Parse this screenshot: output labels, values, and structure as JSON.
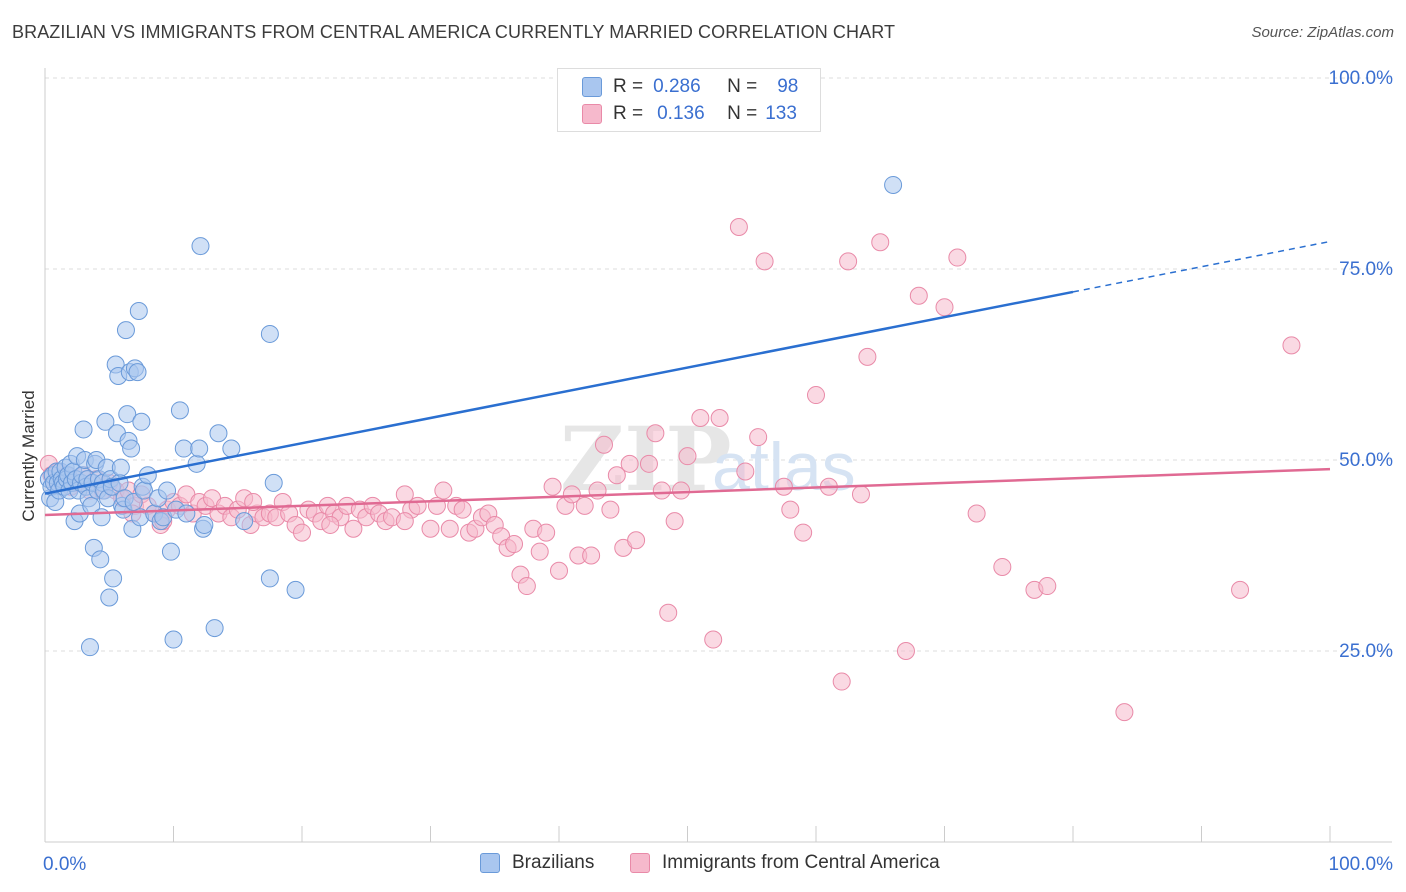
{
  "title": "BRAZILIAN VS IMMIGRANTS FROM CENTRAL AMERICA CURRENTLY MARRIED CORRELATION CHART",
  "source": "Source: ZipAtlas.com",
  "watermark": {
    "zip": "ZIP",
    "atlas": "atlas"
  },
  "legend_top": {
    "rows": [
      {
        "r_label": "R =",
        "r_value": "0.286",
        "n_label": "N =",
        "n_value": "98"
      },
      {
        "r_label": "R =",
        "r_value": "0.136",
        "n_label": "N =",
        "n_value": "133"
      }
    ]
  },
  "colors": {
    "blue_fill": "#a9c6ef",
    "blue_stroke": "#6a9ad9",
    "blue_line": "#2a6fd0",
    "pink_fill": "#f6b9cc",
    "pink_stroke": "#e98aa8",
    "pink_line": "#e06a93",
    "axis_text": "#3a6fd0",
    "grid": "#dddddd"
  },
  "chart_data": {
    "type": "scatter",
    "title": "BRAZILIAN VS IMMIGRANTS FROM CENTRAL AMERICA CURRENTLY MARRIED CORRELATION CHART",
    "xlabel": "",
    "ylabel": "Currently Married",
    "xlim": [
      0,
      100
    ],
    "ylim": [
      0,
      100
    ],
    "x_tick_labels": [
      "0.0%",
      "100.0%"
    ],
    "y_tick_labels": [
      "25.0%",
      "50.0%",
      "75.0%",
      "100.0%"
    ],
    "y_ticks": [
      25,
      50,
      75,
      100
    ],
    "grid": true,
    "legend": "bottom",
    "series": [
      {
        "name": "Brazilians",
        "color": "#a9c6ef",
        "trend": {
          "x": [
            0,
            80
          ],
          "y": [
            45.6,
            72.0
          ],
          "dashed_to": [
            100,
            78.6
          ]
        },
        "points": [
          [
            0.3,
            47.5
          ],
          [
            0.4,
            45
          ],
          [
            0.5,
            46.5
          ],
          [
            0.6,
            48
          ],
          [
            0.7,
            47
          ],
          [
            0.8,
            44.5
          ],
          [
            0.9,
            48.5
          ],
          [
            1.0,
            47
          ],
          [
            1.1,
            46
          ],
          [
            1.2,
            48.5
          ],
          [
            1.3,
            47.5
          ],
          [
            1.4,
            47
          ],
          [
            1.5,
            46.5
          ],
          [
            1.6,
            49
          ],
          [
            1.7,
            47.5
          ],
          [
            1.8,
            48
          ],
          [
            1.9,
            46
          ],
          [
            2.0,
            49.5
          ],
          [
            2.1,
            47
          ],
          [
            2.2,
            48.5
          ],
          [
            2.3,
            42
          ],
          [
            2.4,
            47.5
          ],
          [
            2.5,
            50.5
          ],
          [
            2.6,
            46
          ],
          [
            2.7,
            43
          ],
          [
            2.8,
            47
          ],
          [
            2.9,
            48
          ],
          [
            3.0,
            54
          ],
          [
            3.1,
            50
          ],
          [
            3.2,
            46.5
          ],
          [
            3.3,
            47.5
          ],
          [
            3.4,
            45
          ],
          [
            3.5,
            25.5
          ],
          [
            3.6,
            44
          ],
          [
            3.7,
            47
          ],
          [
            3.8,
            38.5
          ],
          [
            3.9,
            49.5
          ],
          [
            4.0,
            50
          ],
          [
            4.1,
            46
          ],
          [
            4.2,
            47.5
          ],
          [
            4.3,
            37
          ],
          [
            4.4,
            42.5
          ],
          [
            4.5,
            47
          ],
          [
            4.6,
            46
          ],
          [
            4.7,
            55
          ],
          [
            4.8,
            49
          ],
          [
            4.9,
            45
          ],
          [
            5.0,
            32
          ],
          [
            5.1,
            47.5
          ],
          [
            5.2,
            46.5
          ],
          [
            5.3,
            34.5
          ],
          [
            5.5,
            62.5
          ],
          [
            5.6,
            53.5
          ],
          [
            5.7,
            61
          ],
          [
            5.8,
            47
          ],
          [
            5.9,
            49
          ],
          [
            6.0,
            44
          ],
          [
            6.1,
            43.5
          ],
          [
            6.2,
            45
          ],
          [
            6.3,
            67
          ],
          [
            6.4,
            56
          ],
          [
            6.5,
            52.5
          ],
          [
            6.6,
            61.5
          ],
          [
            6.7,
            51.5
          ],
          [
            6.8,
            41
          ],
          [
            6.9,
            44.5
          ],
          [
            7.0,
            62
          ],
          [
            7.2,
            61.5
          ],
          [
            7.3,
            69.5
          ],
          [
            7.4,
            42.5
          ],
          [
            7.5,
            55
          ],
          [
            7.6,
            46.5
          ],
          [
            7.7,
            46
          ],
          [
            8.0,
            48
          ],
          [
            8.5,
            43
          ],
          [
            8.8,
            45
          ],
          [
            9.0,
            42
          ],
          [
            9.2,
            42.5
          ],
          [
            9.5,
            46
          ],
          [
            9.8,
            38
          ],
          [
            10.0,
            26.5
          ],
          [
            10.2,
            43.5
          ],
          [
            10.5,
            56.5
          ],
          [
            10.8,
            51.5
          ],
          [
            11.0,
            43
          ],
          [
            11.8,
            49.5
          ],
          [
            12.0,
            51.5
          ],
          [
            12.1,
            78
          ],
          [
            12.3,
            41
          ],
          [
            12.4,
            41.5
          ],
          [
            13.2,
            28
          ],
          [
            13.5,
            53.5
          ],
          [
            14.5,
            51.5
          ],
          [
            15.5,
            42
          ],
          [
            17.5,
            66.5
          ],
          [
            17.8,
            47
          ],
          [
            17.5,
            34.5
          ],
          [
            19.5,
            33
          ],
          [
            66.0,
            86
          ]
        ]
      },
      {
        "name": "Immigrants from Central America",
        "color": "#f6b9cc",
        "trend": {
          "x": [
            0,
            100
          ],
          "y": [
            42.8,
            48.8
          ]
        },
        "points": [
          [
            0.3,
            49.5
          ],
          [
            0.5,
            48
          ],
          [
            0.7,
            47
          ],
          [
            1.0,
            48.5
          ],
          [
            1.3,
            47
          ],
          [
            1.7,
            48
          ],
          [
            2.0,
            46.5
          ],
          [
            2.5,
            47
          ],
          [
            3.0,
            48
          ],
          [
            3.5,
            46
          ],
          [
            4.0,
            47.5
          ],
          [
            4.5,
            46
          ],
          [
            5.0,
            47
          ],
          [
            5.5,
            46
          ],
          [
            6.0,
            45
          ],
          [
            6.5,
            46
          ],
          [
            7.0,
            44
          ],
          [
            7.5,
            45.5
          ],
          [
            8.0,
            44
          ],
          [
            8.5,
            43
          ],
          [
            9.0,
            41.5
          ],
          [
            9.5,
            43.5
          ],
          [
            10.0,
            44.5
          ],
          [
            10.5,
            44
          ],
          [
            11.0,
            45.5
          ],
          [
            11.5,
            43
          ],
          [
            12.0,
            44.5
          ],
          [
            12.5,
            44
          ],
          [
            13.0,
            45
          ],
          [
            13.5,
            43
          ],
          [
            14.0,
            44
          ],
          [
            14.5,
            42.5
          ],
          [
            15.0,
            43.5
          ],
          [
            15.5,
            45
          ],
          [
            16.0,
            41.5
          ],
          [
            16.5,
            43
          ],
          [
            17.0,
            42.5
          ],
          [
            17.5,
            43
          ],
          [
            18.0,
            42.5
          ],
          [
            18.5,
            44.5
          ],
          [
            19.0,
            43
          ],
          [
            19.5,
            41.5
          ],
          [
            20.0,
            40.5
          ],
          [
            20.5,
            43.5
          ],
          [
            21.0,
            43
          ],
          [
            21.5,
            42
          ],
          [
            22.0,
            44
          ],
          [
            22.5,
            43
          ],
          [
            23.0,
            42.5
          ],
          [
            23.5,
            44
          ],
          [
            24.0,
            41
          ],
          [
            24.5,
            43.5
          ],
          [
            25.0,
            42.5
          ],
          [
            25.5,
            44
          ],
          [
            26.0,
            43
          ],
          [
            26.5,
            42
          ],
          [
            27.0,
            42.5
          ],
          [
            28.0,
            45.5
          ],
          [
            28.5,
            43.5
          ],
          [
            29.0,
            44
          ],
          [
            30.0,
            41
          ],
          [
            30.5,
            44
          ],
          [
            31.0,
            46
          ],
          [
            31.5,
            41
          ],
          [
            32.0,
            44
          ],
          [
            32.5,
            43.5
          ],
          [
            33.0,
            40.5
          ],
          [
            33.5,
            41
          ],
          [
            34.0,
            42.5
          ],
          [
            34.5,
            43
          ],
          [
            35.0,
            41.5
          ],
          [
            35.5,
            40
          ],
          [
            36.0,
            38.5
          ],
          [
            36.5,
            39
          ],
          [
            37.0,
            35
          ],
          [
            37.5,
            33.5
          ],
          [
            38.0,
            41
          ],
          [
            38.5,
            38
          ],
          [
            39.0,
            40.5
          ],
          [
            39.5,
            46.5
          ],
          [
            40.0,
            35.5
          ],
          [
            40.5,
            44
          ],
          [
            41.0,
            45.5
          ],
          [
            41.5,
            37.5
          ],
          [
            42.0,
            44
          ],
          [
            42.5,
            37.5
          ],
          [
            43.0,
            46
          ],
          [
            43.5,
            52
          ],
          [
            44.0,
            43.5
          ],
          [
            44.5,
            48
          ],
          [
            45.0,
            38.5
          ],
          [
            45.5,
            49.5
          ],
          [
            46.0,
            39.5
          ],
          [
            47.0,
            49.5
          ],
          [
            47.5,
            53.5
          ],
          [
            48.0,
            46
          ],
          [
            48.5,
            30
          ],
          [
            49.0,
            42
          ],
          [
            49.5,
            46
          ],
          [
            50.0,
            50.5
          ],
          [
            51.0,
            55.5
          ],
          [
            52.0,
            26.5
          ],
          [
            54.0,
            80.5
          ],
          [
            52.5,
            55.5
          ],
          [
            54.5,
            48.5
          ],
          [
            55.5,
            53
          ],
          [
            56.0,
            76
          ],
          [
            57.5,
            46.5
          ],
          [
            58.0,
            43.5
          ],
          [
            59.0,
            40.5
          ],
          [
            60.0,
            58.5
          ],
          [
            61.0,
            46.5
          ],
          [
            62.0,
            21
          ],
          [
            62.5,
            76
          ],
          [
            63.5,
            45.5
          ],
          [
            64.0,
            63.5
          ],
          [
            65.0,
            78.5
          ],
          [
            67.0,
            25
          ],
          [
            68.0,
            71.5
          ],
          [
            70.0,
            70
          ],
          [
            71.0,
            76.5
          ],
          [
            72.5,
            43
          ],
          [
            74.5,
            36
          ],
          [
            77.0,
            33
          ],
          [
            78.0,
            33.5
          ],
          [
            84.0,
            17
          ],
          [
            93.0,
            33
          ],
          [
            97.0,
            65
          ],
          [
            28.0,
            42
          ],
          [
            22.2,
            41.5
          ],
          [
            6.8,
            43
          ],
          [
            9.2,
            42
          ],
          [
            16.2,
            44.5
          ]
        ]
      }
    ]
  },
  "bottom_legend": {
    "items": [
      {
        "label": "Brazilians"
      },
      {
        "label": "Immigrants from Central America"
      }
    ]
  }
}
